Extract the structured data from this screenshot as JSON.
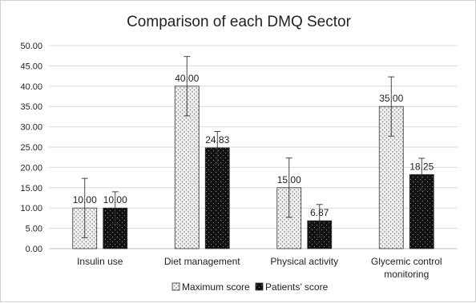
{
  "chart_data": {
    "type": "bar",
    "title": "Comparison of each DMQ Sector",
    "xlabel": "",
    "ylabel": "",
    "ylim": [
      0,
      50
    ],
    "yticks": [
      "0.00",
      "5.00",
      "10.00",
      "15.00",
      "20.00",
      "25.00",
      "30.00",
      "35.00",
      "40.00",
      "45.00",
      "50.00"
    ],
    "categories": [
      [
        "Insulin use"
      ],
      [
        "Diet management"
      ],
      [
        "Physical activity"
      ],
      [
        "Glycemic control",
        "monitoring"
      ]
    ],
    "series": [
      {
        "name": "Maximum score",
        "values": [
          10.0,
          40.0,
          15.0,
          35.0
        ],
        "labels": [
          "10.00",
          "40.00",
          "15.00",
          "35.00"
        ],
        "error": [
          7.3,
          7.3,
          7.3,
          7.3
        ],
        "pattern": "dotted-light"
      },
      {
        "name": "Patients’ score",
        "values": [
          10.0,
          24.83,
          6.87,
          18.25
        ],
        "labels": [
          "10.00",
          "24.83",
          "6.87",
          "18.25"
        ],
        "error": [
          4.0,
          4.0,
          4.0,
          4.0
        ],
        "pattern": "dotted-dark"
      }
    ],
    "grid": true,
    "legend": "bottom"
  },
  "colors": {
    "grid": "#d9d9d9",
    "axis": "#bfbfbf",
    "dark_fill": "#111111",
    "light_fill": "#efefef"
  }
}
